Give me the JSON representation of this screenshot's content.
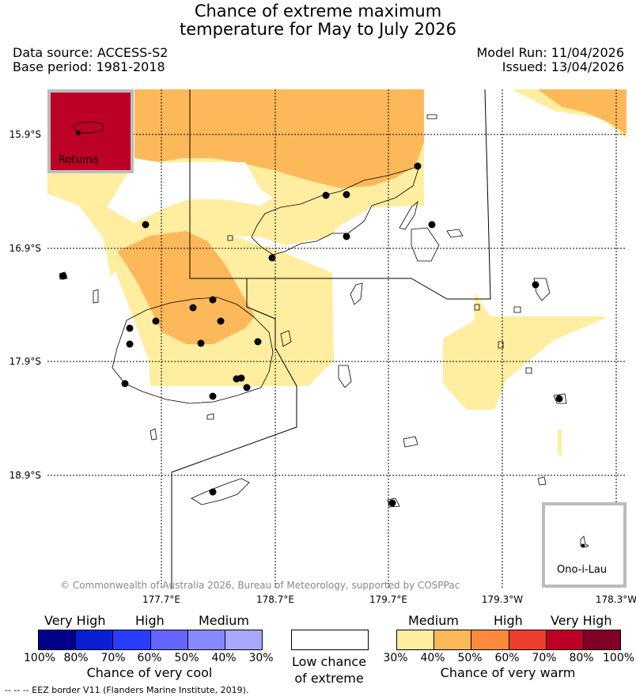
{
  "title": {
    "line1": "Chance of extreme maximum",
    "line2": "temperature for May to July 2026"
  },
  "meta": {
    "data_source": "Data source: ACCESS-S2",
    "base_period": "Base period: 1981-2018",
    "model_run": "Model Run: 11/04/2026",
    "issued": "Issued: 13/04/2026"
  },
  "map": {
    "lat_labels": [
      "15.9°S",
      "16.9°S",
      "17.9°S",
      "18.9°S"
    ],
    "lon_labels": [
      "177.7°E",
      "178.7°E",
      "179.7°E",
      "179.3°W",
      "178.3°W"
    ],
    "insets": {
      "rotuma": "Rotuma",
      "ono_i_lau": "Ono-i-Lau"
    },
    "copyright": "© Commonwealth of Australia 2026, Bureau of Meteorology, supported by COSPPac",
    "colors": {
      "warm_30_40": "#ffeda0",
      "warm_40_50": "#fdb85a",
      "warm_50_60": "#fd8a3c",
      "rotuma_fill": "#bd0026",
      "inset_border": "#bbbbbb"
    }
  },
  "legend": {
    "cool": {
      "headers": [
        "Very High",
        "High",
        "Medium"
      ],
      "ticks": [
        "100%",
        "80%",
        "70%",
        "60%",
        "50%",
        "40%",
        "30%"
      ],
      "title": "Chance of very cool",
      "colors": [
        "#00008b",
        "#0a1fd3",
        "#2a3dff",
        "#6464ff",
        "#8888ff",
        "#a8a8ff"
      ]
    },
    "low": {
      "line1": "Low chance",
      "line2": "of extreme"
    },
    "warm": {
      "headers": [
        "Medium",
        "High",
        "Very High"
      ],
      "ticks": [
        "30%",
        "40%",
        "50%",
        "60%",
        "70%",
        "80%",
        "100%"
      ],
      "title": "Chance of very warm",
      "colors": [
        "#ffeda0",
        "#fdb85a",
        "#fd8a3c",
        "#ee3e2e",
        "#bd0026",
        "#800026"
      ]
    }
  },
  "footer": "--  --  -- EEZ border V11 (Flanders Marine Institute, 2019)."
}
